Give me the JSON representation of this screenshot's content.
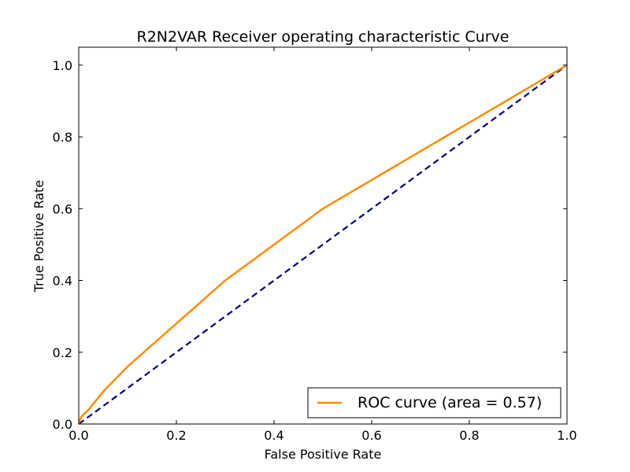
{
  "chart_data": {
    "type": "line",
    "title": "R2N2VAR Receiver operating characteristic Curve",
    "xlabel": "False Positive Rate",
    "ylabel": "True Positive Rate",
    "xlim": [
      0.0,
      1.0
    ],
    "ylim": [
      0.0,
      1.05
    ],
    "x_ticks": [
      0.0,
      0.2,
      0.4,
      0.6,
      0.8,
      1.0
    ],
    "y_ticks": [
      0.0,
      0.2,
      0.4,
      0.6,
      0.8,
      1.0
    ],
    "x_tick_labels": [
      "0.0",
      "0.2",
      "0.4",
      "0.6",
      "0.8",
      "1.0"
    ],
    "y_tick_labels": [
      "0.0",
      "0.2",
      "0.4",
      "0.6",
      "0.8",
      "1.0"
    ],
    "grid": false,
    "legend_position": "lower-right",
    "series": [
      {
        "name": "ROC curve (area = 0.57)",
        "color": "#ff8c00",
        "style": "solid",
        "x": [
          0.0,
          0.005,
          0.02,
          0.05,
          0.1,
          0.15,
          0.2,
          0.25,
          0.3,
          0.35,
          0.4,
          0.45,
          0.5,
          0.55,
          0.6,
          0.65,
          0.7,
          0.75,
          0.8,
          0.85,
          0.9,
          0.95,
          1.0
        ],
        "y": [
          0.0,
          0.02,
          0.04,
          0.09,
          0.16,
          0.22,
          0.28,
          0.34,
          0.4,
          0.45,
          0.5,
          0.55,
          0.6,
          0.64,
          0.68,
          0.72,
          0.76,
          0.8,
          0.84,
          0.88,
          0.92,
          0.96,
          1.0
        ]
      },
      {
        "name": "",
        "color": "#000080",
        "style": "dashed",
        "x": [
          0.0,
          1.0
        ],
        "y": [
          0.0,
          1.0
        ]
      }
    ]
  }
}
